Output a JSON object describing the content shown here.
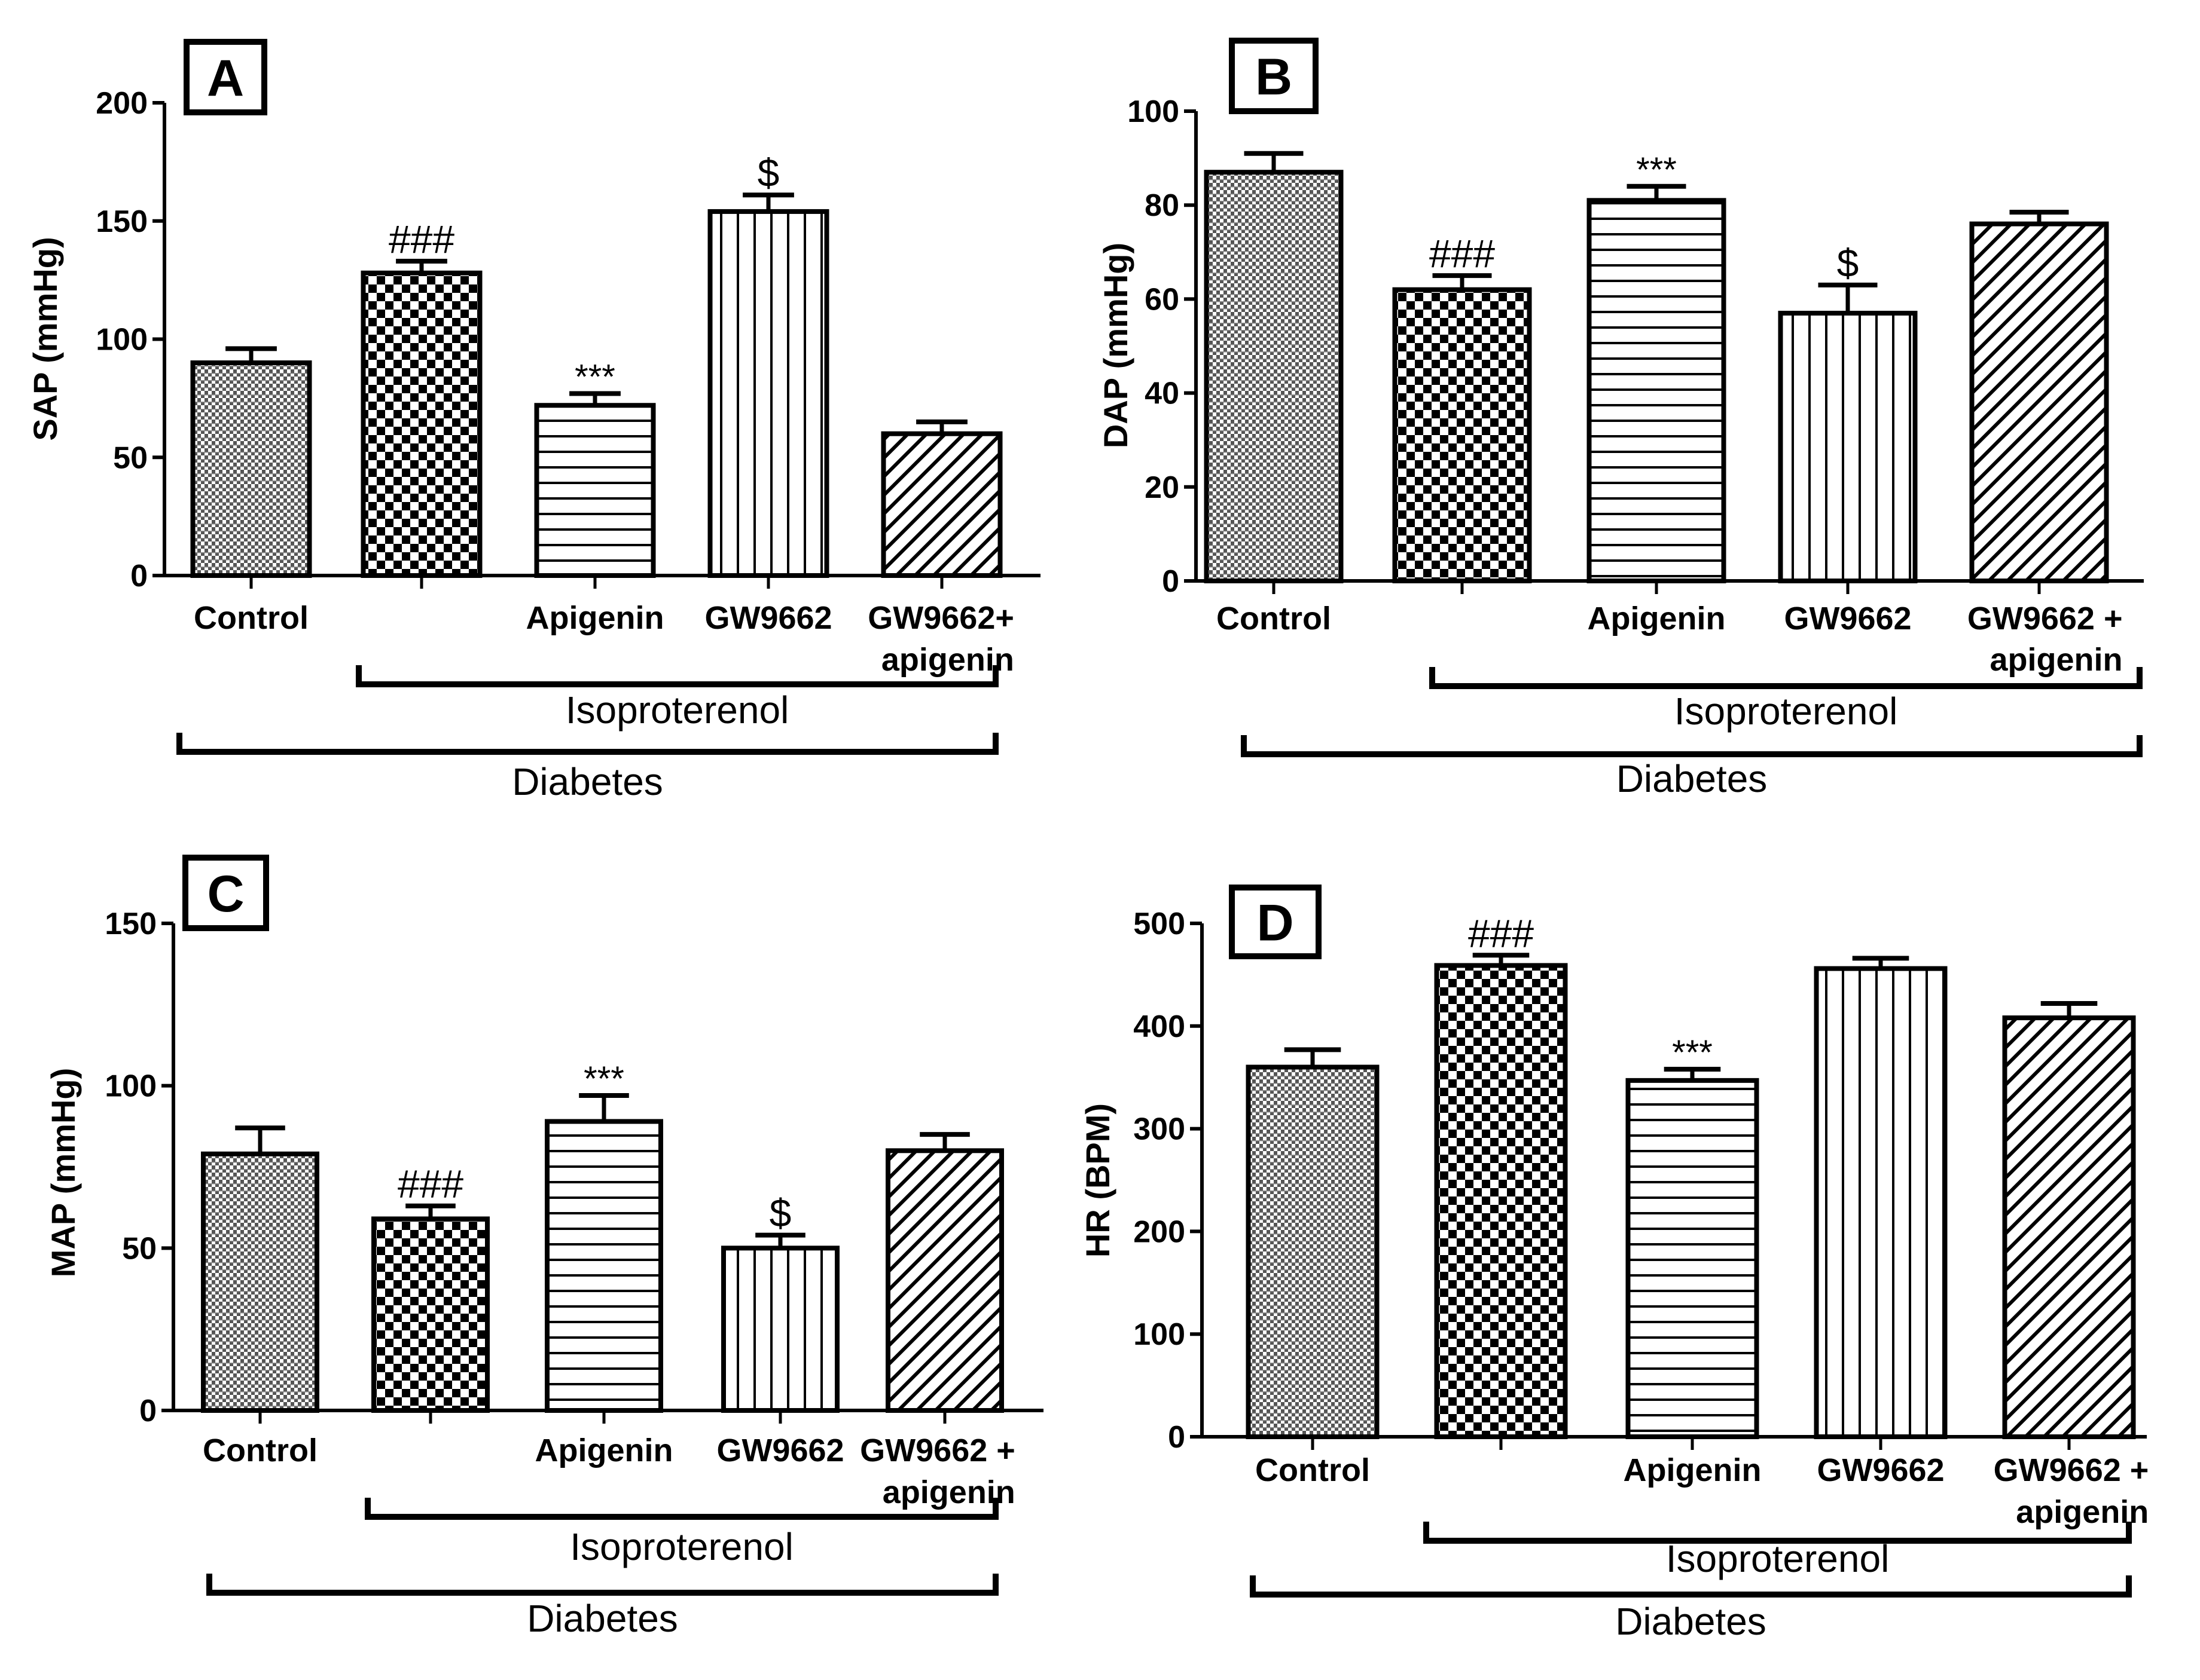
{
  "figure": {
    "categories": [
      "Control",
      "",
      "Apigenin",
      "GW9662",
      "GW9662+ apigenin"
    ],
    "patterns": [
      "fine-check",
      "checker",
      "horizontal",
      "vertical",
      "diagonal"
    ]
  },
  "chart_data": [
    {
      "type": "bar",
      "panel": "A",
      "ylabel": "SAP (mmHg)",
      "ylim": [
        0,
        200
      ],
      "yticks": [
        "0",
        "50",
        "100",
        "150",
        "200"
      ],
      "categories": [
        "Control",
        "",
        "Apigenin",
        "GW9662",
        "GW9662+ apigenin"
      ],
      "tick_lines": [
        [
          "Control"
        ],
        [
          ""
        ],
        [
          "Apigenin"
        ],
        [
          "GW9662"
        ],
        [
          "GW9662+",
          "apigenin"
        ]
      ],
      "values": [
        90,
        128,
        72,
        154,
        60
      ],
      "errors": [
        6,
        5,
        5,
        7,
        5
      ],
      "annotations": [
        "",
        "###",
        "***",
        "$",
        ""
      ],
      "bracket_inner": "Isoproterenol",
      "bracket_outer": "Diabetes"
    },
    {
      "type": "bar",
      "panel": "B",
      "ylabel": "DAP (mmHg)",
      "ylim": [
        0,
        100
      ],
      "yticks": [
        "0",
        "20",
        "40",
        "60",
        "80",
        "100"
      ],
      "categories": [
        "Control",
        "",
        "Apigenin",
        "GW9662",
        "GW9662 + apigenin"
      ],
      "tick_lines": [
        [
          "Control"
        ],
        [
          ""
        ],
        [
          "Apigenin"
        ],
        [
          "GW9662"
        ],
        [
          "GW9662 +",
          "apigenin"
        ]
      ],
      "values": [
        87,
        62,
        81,
        57,
        76
      ],
      "errors": [
        4,
        3,
        3,
        6,
        2.5
      ],
      "annotations": [
        "",
        "###",
        "***",
        "$",
        ""
      ],
      "bracket_inner": "Isoproterenol",
      "bracket_outer": "Diabetes"
    },
    {
      "type": "bar",
      "panel": "C",
      "ylabel": "MAP (mmHg)",
      "ylim": [
        0,
        150
      ],
      "yticks": [
        "0",
        "50",
        "100",
        "150"
      ],
      "categories": [
        "Control",
        "",
        "Apigenin",
        "GW9662",
        "GW9662 + apigenin"
      ],
      "tick_lines": [
        [
          "Control"
        ],
        [
          ""
        ],
        [
          "Apigenin"
        ],
        [
          "GW9662"
        ],
        [
          "GW9662 +",
          "apigenin"
        ]
      ],
      "values": [
        79,
        59,
        89,
        50,
        80
      ],
      "errors": [
        8,
        4,
        8,
        4,
        5
      ],
      "annotations": [
        "",
        "###",
        "***",
        "$",
        ""
      ],
      "bracket_inner": "Isoproterenol",
      "bracket_outer": "Diabetes"
    },
    {
      "type": "bar",
      "panel": "D",
      "ylabel": "HR (BPM)",
      "ylim": [
        0,
        500
      ],
      "yticks": [
        "0",
        "100",
        "200",
        "300",
        "400",
        "500"
      ],
      "categories": [
        "Control",
        "",
        "Apigenin",
        "GW9662",
        "GW9662 + apigenin"
      ],
      "tick_lines": [
        [
          "Control"
        ],
        [
          ""
        ],
        [
          "Apigenin"
        ],
        [
          "GW9662"
        ],
        [
          "GW9662 +",
          "apigenin"
        ]
      ],
      "values": [
        360,
        459,
        347,
        456,
        408
      ],
      "errors": [
        17,
        10,
        11,
        10,
        14
      ],
      "annotations": [
        "",
        "###",
        "***",
        "",
        ""
      ],
      "bracket_inner": "Isoproterenol",
      "bracket_outer": "Diabetes"
    }
  ]
}
